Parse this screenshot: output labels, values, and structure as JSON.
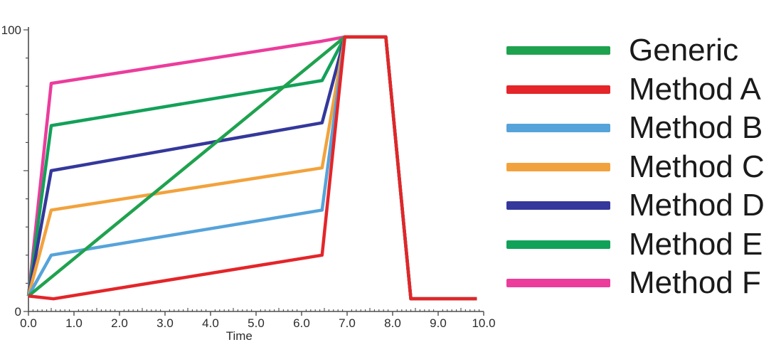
{
  "chart_data": {
    "type": "line",
    "title": "",
    "xlabel": "Time",
    "ylabel": "",
    "xlim": [
      0,
      10
    ],
    "ylim": [
      0,
      100
    ],
    "x_ticks": [
      {
        "v": 0,
        "label": "0.0"
      },
      {
        "v": 1,
        "label": "1.0"
      },
      {
        "v": 2,
        "label": "2.0"
      },
      {
        "v": 3,
        "label": "3.0"
      },
      {
        "v": 4,
        "label": "4.0"
      },
      {
        "v": 5,
        "label": "5.0"
      },
      {
        "v": 6,
        "label": "6.0"
      },
      {
        "v": 7,
        "label": "7.0"
      },
      {
        "v": 8,
        "label": "8.0"
      },
      {
        "v": 9,
        "label": "9.0"
      },
      {
        "v": 10,
        "label": "10.0"
      }
    ],
    "x_minor_step": 0.1,
    "x_mid_step": 0.5,
    "y_ticks": [
      {
        "v": 0,
        "label": "0"
      },
      {
        "v": 50,
        "label": ""
      },
      {
        "v": 100,
        "label": "100"
      }
    ],
    "y_minor_step": 10,
    "grid": false,
    "legend_position": "right",
    "axis_color": "#4d4d4d",
    "series": [
      {
        "name": "Generic",
        "color": "#1FA24E",
        "points": [
          [
            0,
            5.5
          ],
          [
            6.95,
            97.5
          ],
          [
            7.85,
            97.5
          ],
          [
            8.4,
            4.5
          ],
          [
            9.85,
            4.5
          ]
        ]
      },
      {
        "name": "Method A",
        "color": "#E42529",
        "points": [
          [
            0,
            5.5
          ],
          [
            0.55,
            4.5
          ],
          [
            6.45,
            20
          ],
          [
            6.95,
            97.5
          ],
          [
            7.85,
            97.5
          ],
          [
            8.4,
            4.5
          ],
          [
            9.85,
            4.5
          ]
        ]
      },
      {
        "name": "Method B",
        "color": "#56A3DA",
        "points": [
          [
            0,
            5.5
          ],
          [
            0.5,
            20
          ],
          [
            6.45,
            36
          ],
          [
            6.95,
            97.5
          ],
          [
            7.85,
            97.5
          ],
          [
            8.4,
            4.5
          ],
          [
            9.85,
            4.5
          ]
        ]
      },
      {
        "name": "Method C",
        "color": "#F2A23C",
        "points": [
          [
            0,
            5.5
          ],
          [
            0.5,
            36
          ],
          [
            6.45,
            51
          ],
          [
            6.95,
            97.5
          ],
          [
            7.85,
            97.5
          ],
          [
            8.4,
            4.5
          ],
          [
            9.85,
            4.5
          ]
        ]
      },
      {
        "name": "Method D",
        "color": "#34389B",
        "points": [
          [
            0,
            5.5
          ],
          [
            0.5,
            50
          ],
          [
            6.45,
            67
          ],
          [
            6.95,
            97.5
          ],
          [
            7.85,
            97.5
          ],
          [
            8.4,
            4.5
          ],
          [
            9.85,
            4.5
          ]
        ]
      },
      {
        "name": "Method E",
        "color": "#12A159",
        "points": [
          [
            0,
            5.5
          ],
          [
            0.5,
            66
          ],
          [
            6.45,
            82
          ],
          [
            6.95,
            97.5
          ],
          [
            7.85,
            97.5
          ],
          [
            8.4,
            4.5
          ],
          [
            9.85,
            4.5
          ]
        ]
      },
      {
        "name": "Method F",
        "color": "#EC3C9C",
        "points": [
          [
            0,
            5.5
          ],
          [
            0.5,
            81
          ],
          [
            6.45,
            96
          ],
          [
            6.95,
            97.5
          ],
          [
            7.85,
            97.5
          ],
          [
            8.4,
            4.5
          ],
          [
            9.85,
            4.5
          ]
        ]
      }
    ],
    "draw_order": [
      "Method F",
      "Method E",
      "Method D",
      "Method C",
      "Method B",
      "Generic",
      "Method A"
    ]
  },
  "legend": {
    "items": [
      {
        "label": "Generic",
        "color": "#1FA24E"
      },
      {
        "label": "Method A",
        "color": "#E42529"
      },
      {
        "label": "Method B",
        "color": "#56A3DA"
      },
      {
        "label": "Method C",
        "color": "#F2A23C"
      },
      {
        "label": "Method D",
        "color": "#34389B"
      },
      {
        "label": "Method E",
        "color": "#12A159"
      },
      {
        "label": "Method F",
        "color": "#EC3C9C"
      }
    ]
  }
}
